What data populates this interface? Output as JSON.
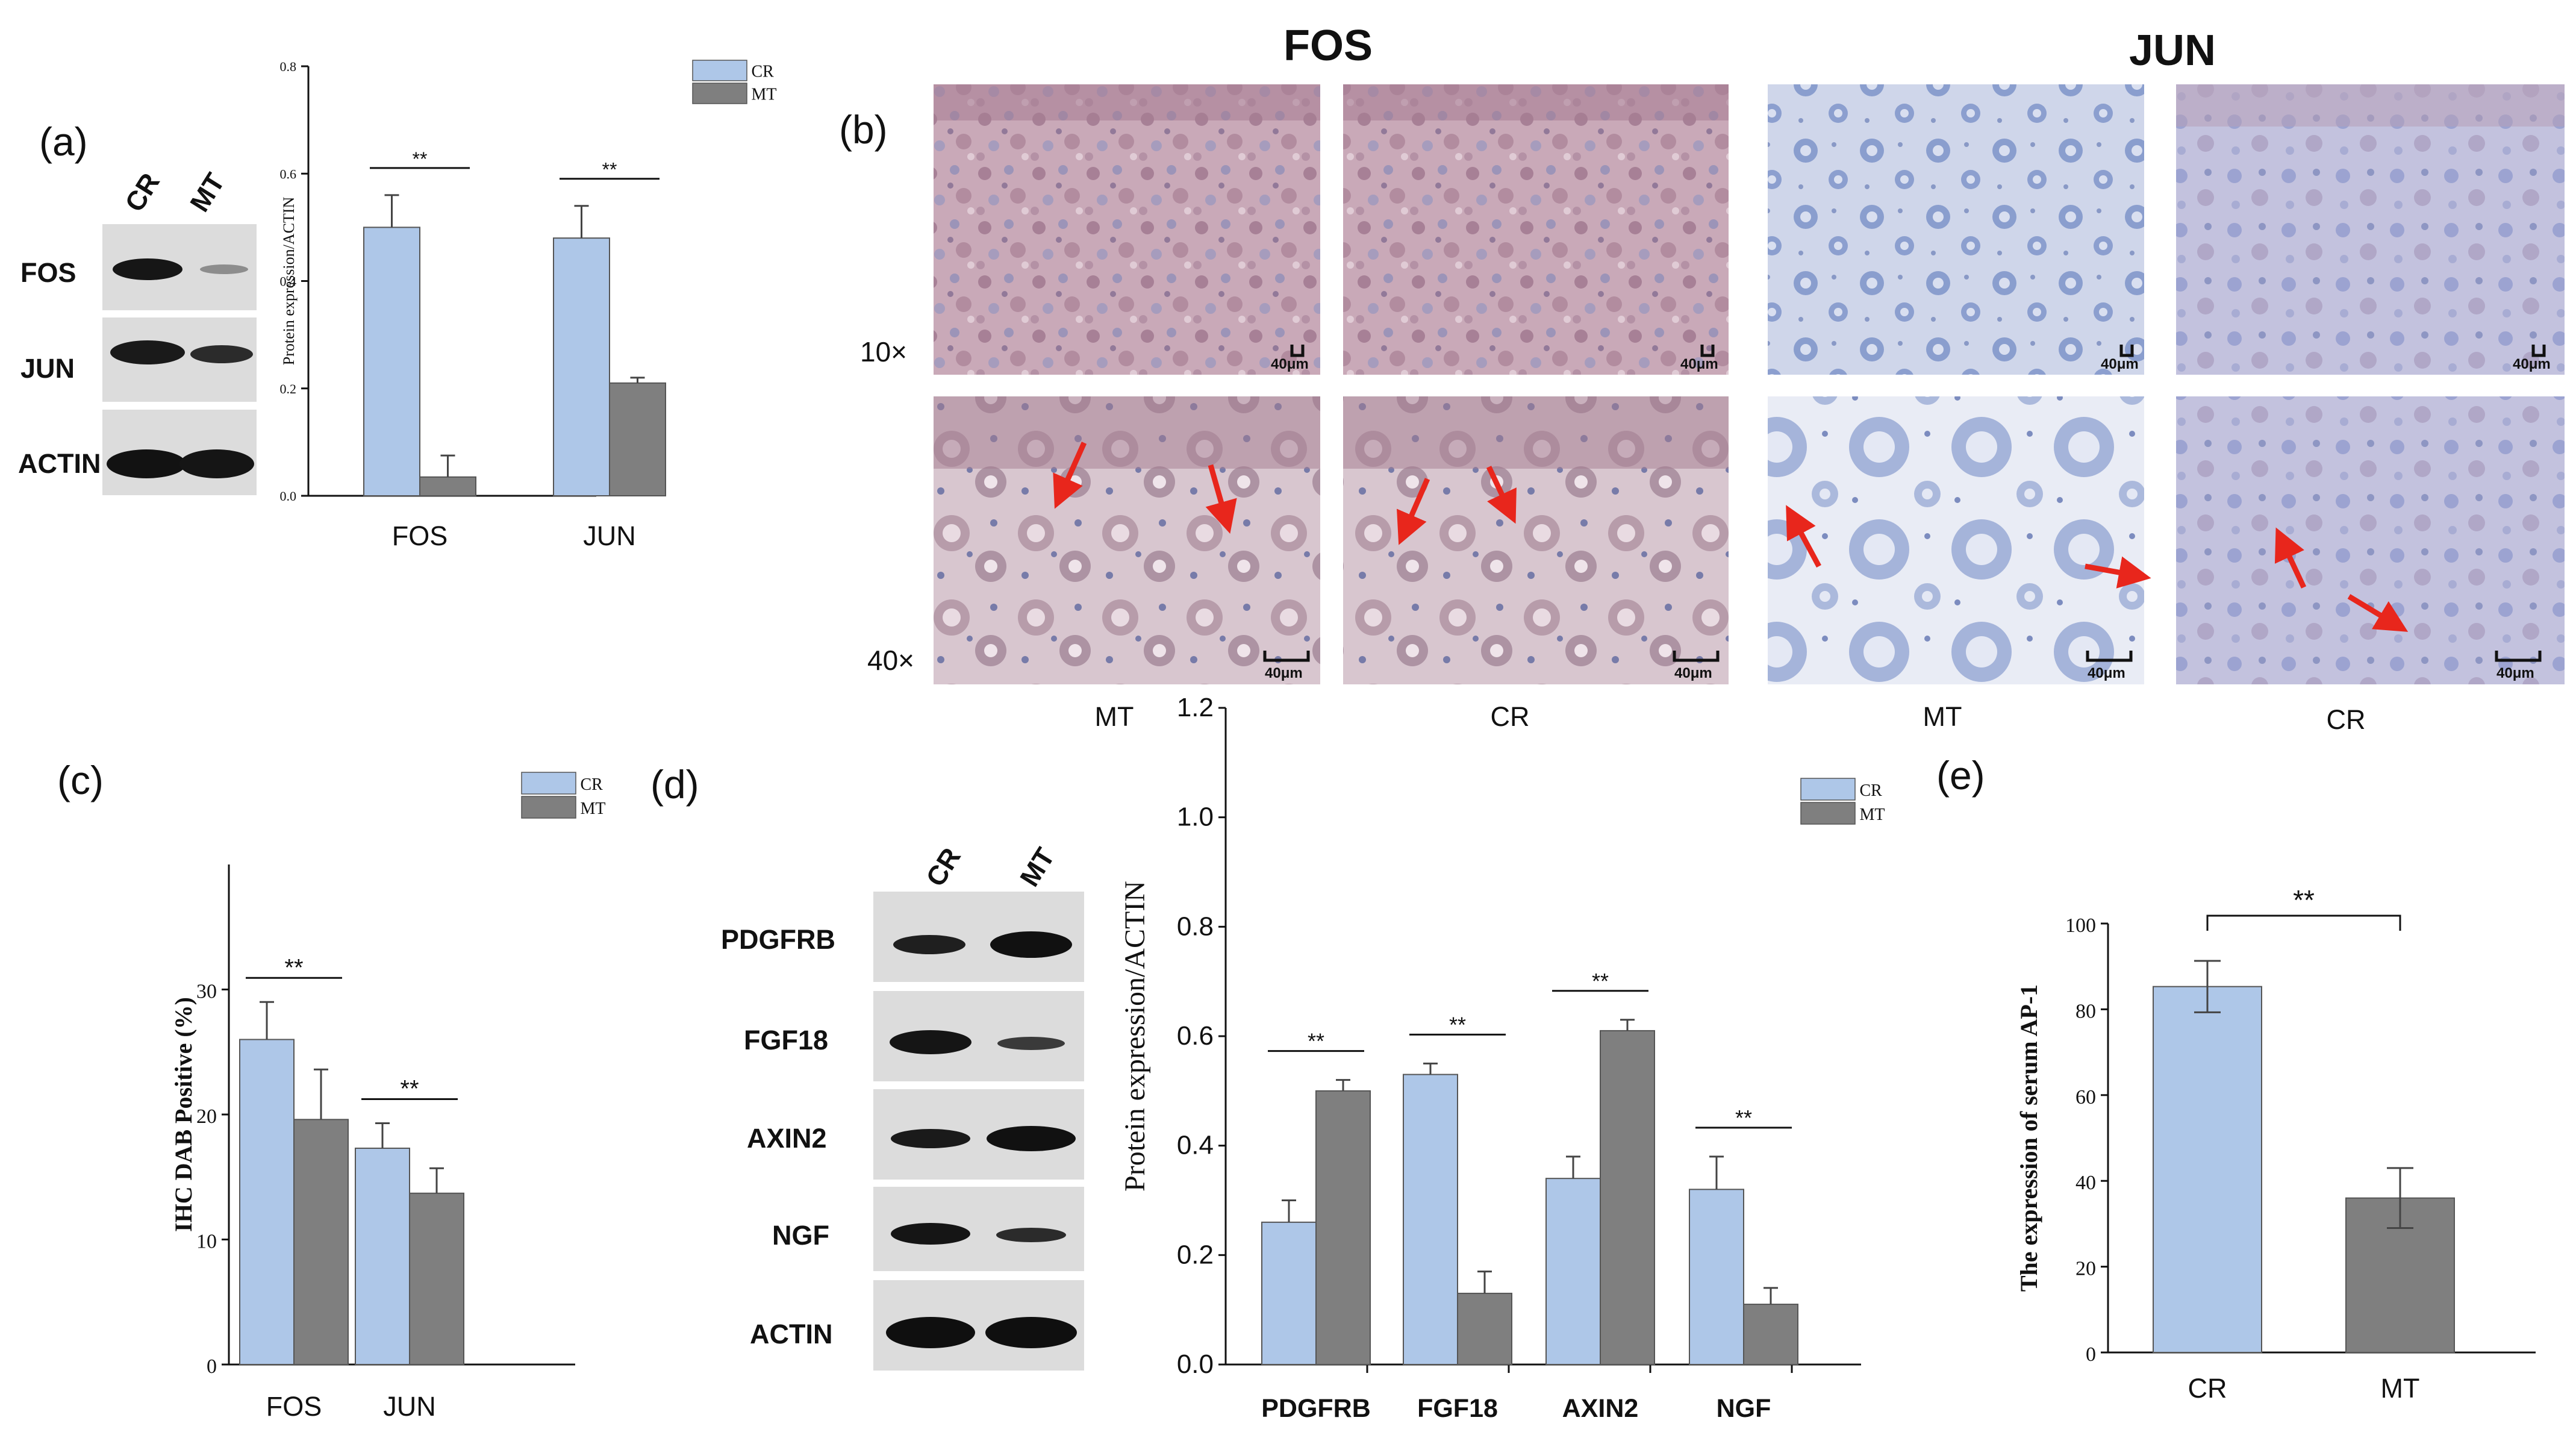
{
  "panels": {
    "a": "(a)",
    "b": "(b)",
    "c": "(c)",
    "d": "(d)",
    "e": "(e)"
  },
  "colors": {
    "cr": "#aec7e8",
    "mt": "#7f7f7f",
    "tissue_pink": "#b48aa0",
    "tissue_blue": "#95a9d2",
    "arrow": "#e8261c"
  },
  "panel_a": {
    "blot_lanes": [
      "CR",
      "MT"
    ],
    "blot_rows": [
      "FOS",
      "JUN",
      "ACTIN"
    ]
  },
  "panel_b": {
    "headers": [
      "FOS",
      "JUN"
    ],
    "magnifications": [
      "10×",
      "40×"
    ],
    "scale_label": "40μm",
    "column_labels": [
      "MT",
      "CR",
      "MT",
      "CR"
    ]
  },
  "panel_d": {
    "blot_lanes": [
      "CR",
      "MT"
    ],
    "blot_rows": [
      "PDGFRB",
      "FGF18",
      "AXIN2",
      "NGF",
      "ACTIN"
    ]
  },
  "chart_data": [
    {
      "id": "a",
      "type": "bar",
      "categories": [
        "FOS",
        "JUN"
      ],
      "series": [
        {
          "name": "CR",
          "values": [
            0.5,
            0.48
          ],
          "errors": [
            0.06,
            0.06
          ]
        },
        {
          "name": "MT",
          "values": [
            0.035,
            0.21
          ],
          "errors": [
            0.04,
            0.01
          ]
        }
      ],
      "ylabel": "Protein expression/ACTIN",
      "ylim": [
        0,
        0.8
      ],
      "yticks": [
        "0.0",
        "0.2",
        "0.4",
        "0.6",
        "0.8"
      ],
      "significance": [
        "**",
        "**"
      ],
      "legend": "top-right"
    },
    {
      "id": "c",
      "type": "bar",
      "categories": [
        "FOS",
        "JUN"
      ],
      "series": [
        {
          "name": "CR",
          "values": [
            26.0,
            17.3
          ],
          "errors": [
            3.0,
            2.0
          ]
        },
        {
          "name": "MT",
          "values": [
            19.6,
            13.7
          ],
          "errors": [
            4.0,
            2.0
          ]
        }
      ],
      "ylabel": "IHC DAB Positive (%)",
      "ylim": [
        0,
        40
      ],
      "yticks": [
        "0",
        "10",
        "20",
        "30"
      ],
      "significance": [
        "**",
        "**"
      ],
      "legend": "top-right"
    },
    {
      "id": "d",
      "type": "bar",
      "categories": [
        "PDGFRB",
        "FGF18",
        "AXIN2",
        "NGF"
      ],
      "series": [
        {
          "name": "CR",
          "values": [
            0.26,
            0.53,
            0.34,
            0.32
          ],
          "errors": [
            0.04,
            0.02,
            0.04,
            0.06
          ]
        },
        {
          "name": "MT",
          "values": [
            0.5,
            0.13,
            0.61,
            0.11
          ],
          "errors": [
            0.02,
            0.04,
            0.02,
            0.03
          ]
        }
      ],
      "ylabel": "Protein expression/ACTIN",
      "ylim": [
        0,
        1.2
      ],
      "yticks": [
        "0.0",
        "0.2",
        "0.4",
        "0.6",
        "0.8",
        "1.0",
        "1.2"
      ],
      "significance": [
        "**",
        "**",
        "**",
        "**"
      ],
      "legend": "top-right"
    },
    {
      "id": "e",
      "type": "bar",
      "categories": [
        "CR",
        "MT"
      ],
      "values": [
        85.3,
        36.0
      ],
      "errors": [
        6.0,
        7.0
      ],
      "ylabel": "The expression of serum AP-1",
      "ylim": [
        0,
        100
      ],
      "yticks": [
        "0",
        "20",
        "40",
        "60",
        "80",
        "100"
      ],
      "significance": [
        "**"
      ]
    }
  ]
}
